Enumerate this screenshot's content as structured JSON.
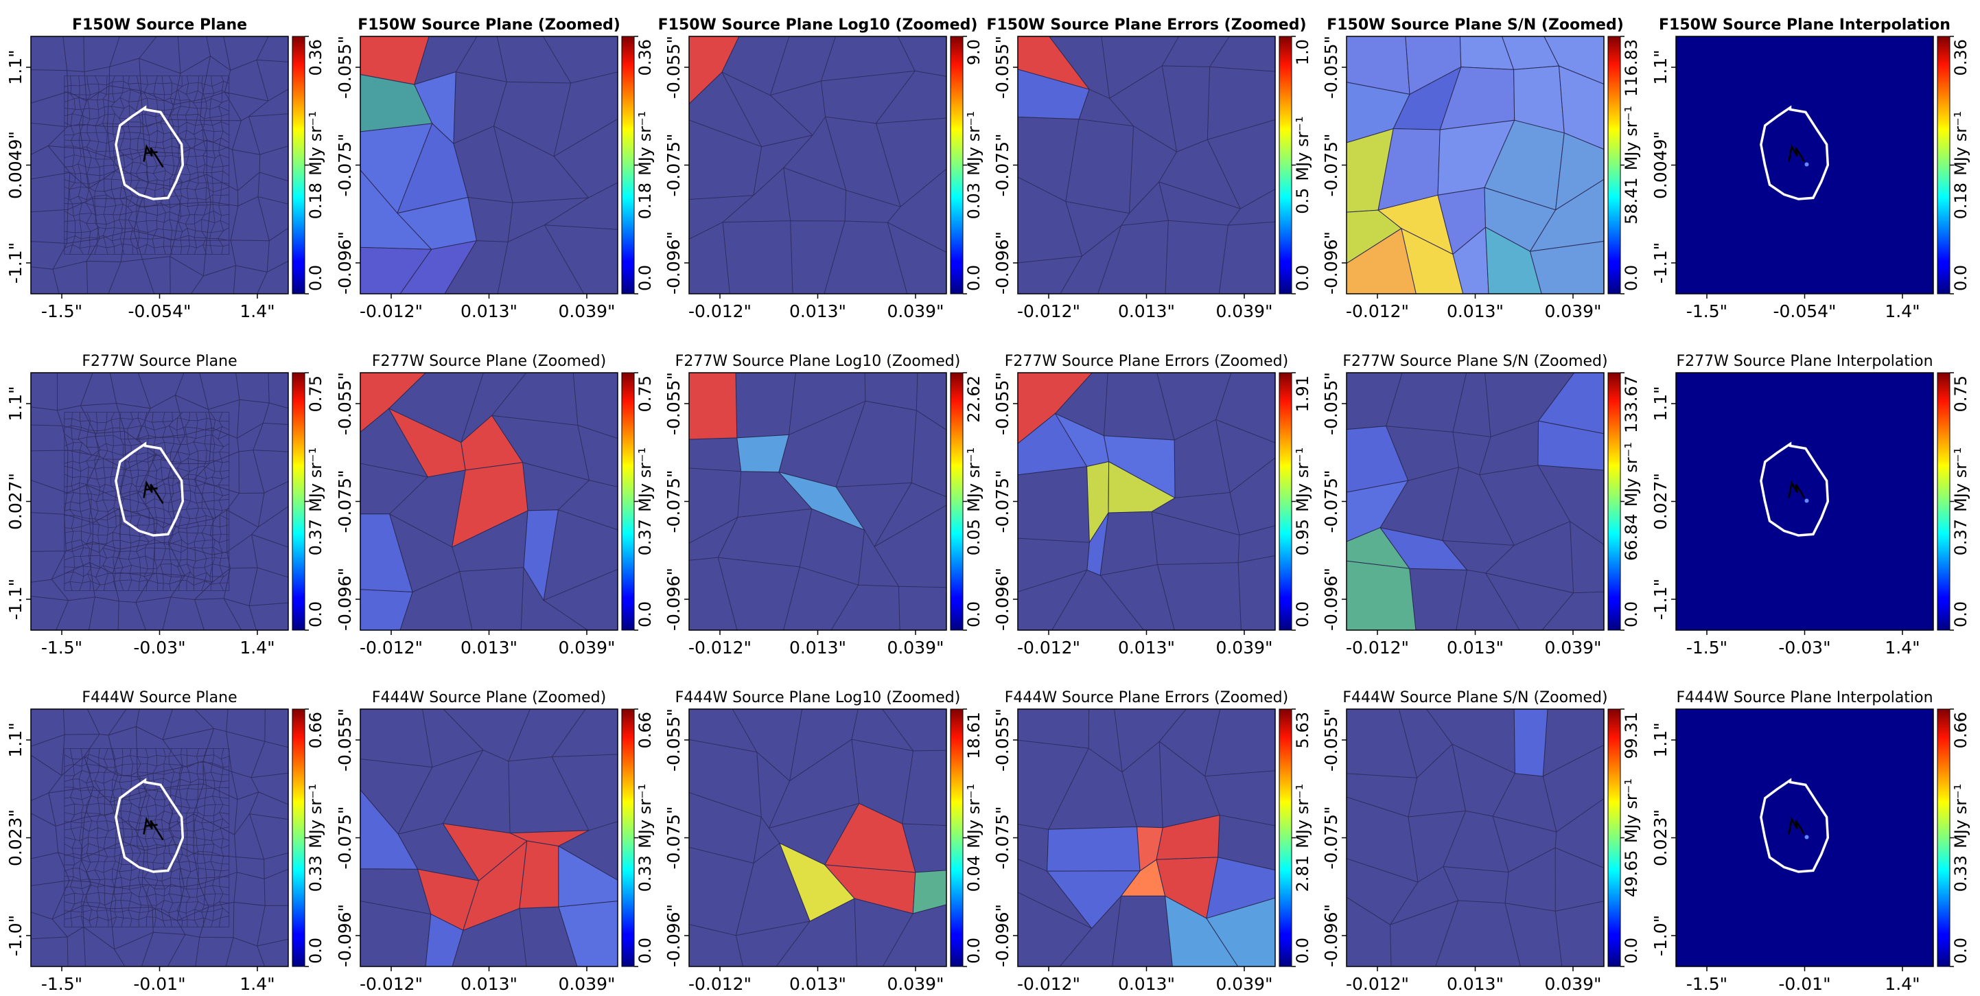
{
  "figure": {
    "rows": [
      {
        "filter": "F150W",
        "title_bold": true,
        "panels": [
          {
            "title": "F150W Source Plane",
            "kind": "full",
            "x_ticks": [
              "-1.5\"",
              "-0.054\"",
              "1.4\""
            ],
            "y_ticks": [
              "1.1\"",
              "0.0049\"",
              "-1.1\""
            ],
            "cbar": {
              "ticks": [
                "0.0",
                "0.18",
                "0.36"
              ],
              "label_prefix": "0.18"
            }
          },
          {
            "title": "F150W Source Plane (Zoomed)",
            "kind": "zoom",
            "x_ticks": [
              "-0.012\"",
              "0.013\"",
              "0.039\""
            ],
            "y_ticks": [
              "-0.055\"",
              "-0.075\"",
              "-0.096\""
            ],
            "cbar": {
              "ticks": [
                "0.0",
                "0.18",
                "0.36"
              ],
              "label_prefix": "0.18"
            }
          },
          {
            "title": "F150W Source Plane Log10 (Zoomed)",
            "kind": "zoom",
            "x_ticks": [
              "-0.012\"",
              "0.013\"",
              "0.039\""
            ],
            "y_ticks": [
              "-0.055\"",
              "-0.075\"",
              "-0.096\""
            ],
            "cbar": {
              "ticks": [
                "0.0",
                "0.03",
                "9.0"
              ],
              "label_prefix": "0.03"
            }
          },
          {
            "title": "F150W Source Plane Errors (Zoomed)",
            "kind": "zoom",
            "x_ticks": [
              "-0.012\"",
              "0.013\"",
              "0.039\""
            ],
            "y_ticks": [
              "-0.055\"",
              "-0.075\"",
              "-0.096\""
            ],
            "cbar": {
              "ticks": [
                "0.0",
                "0.5",
                "1.0"
              ],
              "label_prefix": "0.5"
            }
          },
          {
            "title": "F150W Source Plane S/N (Zoomed)",
            "kind": "zoom",
            "x_ticks": [
              "-0.012\"",
              "0.013\"",
              "0.039\""
            ],
            "y_ticks": [
              "-0.055\"",
              "-0.075\"",
              "-0.096\""
            ],
            "cbar": {
              "ticks": [
                "0.0",
                "58.41",
                "116.83"
              ],
              "label_prefix": "58.41"
            }
          },
          {
            "title": "F150W Source Plane Interpolation",
            "kind": "interp",
            "x_ticks": [
              "-1.5\"",
              "-0.054\"",
              "1.4\""
            ],
            "y_ticks": [
              "1.1\"",
              "0.0049\"",
              "-1.1\""
            ],
            "cbar": {
              "ticks": [
                "0.0",
                "0.18",
                "0.36"
              ],
              "label_prefix": "0.18"
            }
          }
        ]
      },
      {
        "filter": "F277W",
        "title_bold": false,
        "panels": [
          {
            "title": "F277W Source Plane",
            "kind": "full",
            "x_ticks": [
              "-1.5\"",
              "-0.03\"",
              "1.4\""
            ],
            "y_ticks": [
              "1.1\"",
              "0.027\"",
              "-1.1\""
            ],
            "cbar": {
              "ticks": [
                "0.0",
                "0.37",
                "0.75"
              ],
              "label_prefix": "0.37"
            }
          },
          {
            "title": "F277W Source Plane (Zoomed)",
            "kind": "zoom",
            "x_ticks": [
              "-0.012\"",
              "0.013\"",
              "0.039\""
            ],
            "y_ticks": [
              "-0.055\"",
              "-0.075\"",
              "-0.096\""
            ],
            "cbar": {
              "ticks": [
                "0.0",
                "0.37",
                "0.75"
              ],
              "label_prefix": "0.37"
            }
          },
          {
            "title": "F277W Source Plane Log10 (Zoomed)",
            "kind": "zoom",
            "x_ticks": [
              "-0.012\"",
              "0.013\"",
              "0.039\""
            ],
            "y_ticks": [
              "-0.055\"",
              "-0.075\"",
              "-0.096\""
            ],
            "cbar": {
              "ticks": [
                "0.0",
                "0.05",
                "22.62"
              ],
              "label_prefix": "0.05"
            }
          },
          {
            "title": "F277W Source Plane Errors (Zoomed)",
            "kind": "zoom",
            "x_ticks": [
              "-0.012\"",
              "0.013\"",
              "0.039\""
            ],
            "y_ticks": [
              "-0.055\"",
              "-0.075\"",
              "-0.096\""
            ],
            "cbar": {
              "ticks": [
                "0.0",
                "0.95",
                "1.91"
              ],
              "label_prefix": "0.95"
            }
          },
          {
            "title": "F277W Source Plane S/N (Zoomed)",
            "kind": "zoom",
            "x_ticks": [
              "-0.012\"",
              "0.013\"",
              "0.039\""
            ],
            "y_ticks": [
              "-0.055\"",
              "-0.075\"",
              "-0.096\""
            ],
            "cbar": {
              "ticks": [
                "0.0",
                "66.84",
                "133.67"
              ],
              "label_prefix": "66.84"
            }
          },
          {
            "title": "F277W Source Plane Interpolation",
            "kind": "interp",
            "x_ticks": [
              "-1.5\"",
              "-0.03\"",
              "1.4\""
            ],
            "y_ticks": [
              "1.1\"",
              "0.027\"",
              "-1.1\""
            ],
            "cbar": {
              "ticks": [
                "0.0",
                "0.37",
                "0.75"
              ],
              "label_prefix": "0.37"
            }
          }
        ]
      },
      {
        "filter": "F444W",
        "title_bold": false,
        "panels": [
          {
            "title": "F444W Source Plane",
            "kind": "full",
            "x_ticks": [
              "-1.5\"",
              "-0.01\"",
              "1.4\""
            ],
            "y_ticks": [
              "1.1\"",
              "0.023\"",
              "-1.0\""
            ],
            "cbar": {
              "ticks": [
                "0.0",
                "0.33",
                "0.66"
              ],
              "label_prefix": "0.33"
            }
          },
          {
            "title": "F444W Source Plane (Zoomed)",
            "kind": "zoom",
            "x_ticks": [
              "-0.012\"",
              "0.013\"",
              "0.039\""
            ],
            "y_ticks": [
              "-0.055\"",
              "-0.075\"",
              "-0.096\""
            ],
            "cbar": {
              "ticks": [
                "0.0",
                "0.33",
                "0.66"
              ],
              "label_prefix": "0.33"
            }
          },
          {
            "title": "F444W Source Plane Log10 (Zoomed)",
            "kind": "zoom",
            "x_ticks": [
              "-0.012\"",
              "0.013\"",
              "0.039\""
            ],
            "y_ticks": [
              "-0.055\"",
              "-0.075\"",
              "-0.096\""
            ],
            "cbar": {
              "ticks": [
                "0.0",
                "0.04",
                "18.61"
              ],
              "label_prefix": "0.04"
            }
          },
          {
            "title": "F444W Source Plane Errors (Zoomed)",
            "kind": "zoom",
            "x_ticks": [
              "-0.012\"",
              "0.013\"",
              "0.039\""
            ],
            "y_ticks": [
              "-0.055\"",
              "-0.075\"",
              "-0.096\""
            ],
            "cbar": {
              "ticks": [
                "0.0",
                "2.81",
                "5.63"
              ],
              "label_prefix": "2.81"
            }
          },
          {
            "title": "F444W Source Plane S/N (Zoomed)",
            "kind": "zoom",
            "x_ticks": [
              "-0.012\"",
              "0.013\"",
              "0.039\""
            ],
            "y_ticks": [
              "-0.055\"",
              "-0.075\"",
              "-0.096\""
            ],
            "cbar": {
              "ticks": [
                "0.0",
                "49.65",
                "99.31"
              ],
              "label_prefix": "49.65"
            }
          },
          {
            "title": "F444W Source Plane Interpolation",
            "kind": "interp",
            "x_ticks": [
              "-1.5\"",
              "-0.01\"",
              "1.4\""
            ],
            "y_ticks": [
              "1.1\"",
              "0.023\"",
              "-1.0\""
            ],
            "cbar": {
              "ticks": [
                "0.0",
                "0.33",
                "0.66"
              ],
              "label_prefix": "0.33"
            }
          }
        ]
      }
    ],
    "cbar_unit": "MJy sr⁻¹",
    "colormap": "jet",
    "background_cell_color": "#4a4a9a",
    "interp_background_color": "#00008b"
  },
  "chart_data": {
    "type": "heatmap",
    "description_rows": [
      "F150W",
      "F277W",
      "F444W"
    ],
    "panel_types": [
      "Source Plane",
      "Source Plane (Zoomed)",
      "Source Plane Log10 (Zoomed)",
      "Source Plane Errors (Zoomed)",
      "Source Plane S/N (Zoomed)",
      "Source Plane Interpolation"
    ],
    "colorbar_ranges": {
      "F150W": [
        [
          0.0,
          0.36
        ],
        [
          0.0,
          0.36
        ],
        [
          0.0,
          9.0
        ],
        [
          0.0,
          1.0
        ],
        [
          0.0,
          116.83
        ],
        [
          0.0,
          0.36
        ]
      ],
      "F277W": [
        [
          0.0,
          0.75
        ],
        [
          0.0,
          0.75
        ],
        [
          0.0,
          22.62
        ],
        [
          0.0,
          1.91
        ],
        [
          0.0,
          133.67
        ],
        [
          0.0,
          0.75
        ]
      ],
      "F444W": [
        [
          0.0,
          0.66
        ],
        [
          0.0,
          0.66
        ],
        [
          0.0,
          18.61
        ],
        [
          0.0,
          5.63
        ],
        [
          0.0,
          99.31
        ],
        [
          0.0,
          0.66
        ]
      ]
    }
  }
}
